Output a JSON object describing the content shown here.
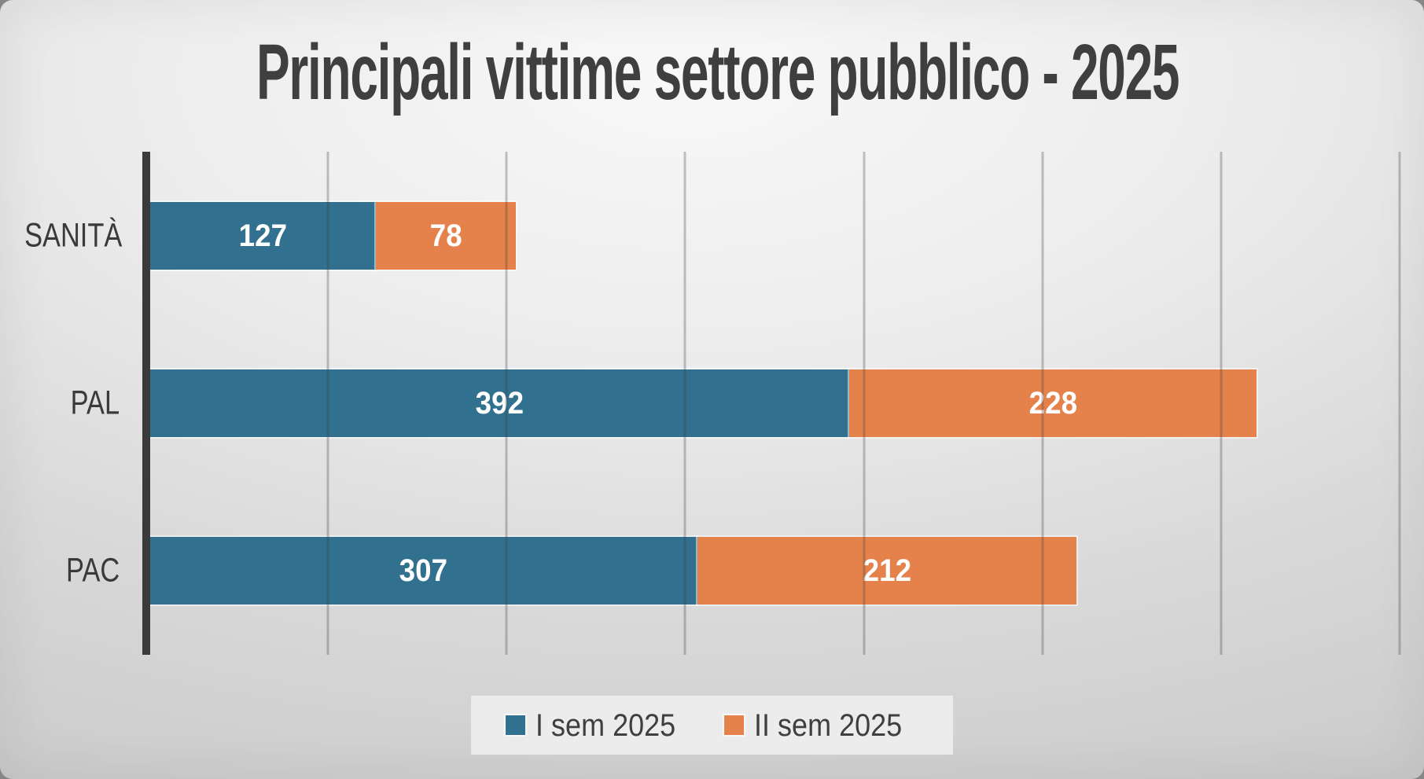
{
  "chart_data": {
    "type": "bar",
    "orientation": "horizontal",
    "stacked": true,
    "title": "Principali vittime settore pubblico - 2025",
    "categories": [
      "SANITÀ",
      "PAL",
      "PAC"
    ],
    "series": [
      {
        "name": "I sem 2025",
        "color": "#31708E",
        "values": [
          127,
          392,
          307
        ]
      },
      {
        "name": "II sem 2025",
        "color": "#E5824C",
        "values": [
          78,
          228,
          212
        ]
      }
    ],
    "xlim": [
      0,
      700
    ],
    "gridline_interval": 100,
    "grid": true,
    "axis_tick_labels_visible": false,
    "data_labels": true,
    "data_label_color": "#FFFFFF",
    "legend_position": "bottom"
  },
  "styles": {
    "title_color": "#3F3F3F",
    "category_label_color": "#3A3A3A",
    "axis_line_color": "#3A3A3A",
    "gridline_color": "rgba(64,64,64,0.30)",
    "legend_background": "#ECECEC",
    "legend_text_color": "#3F3F3F",
    "slide_background_center": "#F8F8F8",
    "slide_background_edge": "#C9C9C9"
  }
}
